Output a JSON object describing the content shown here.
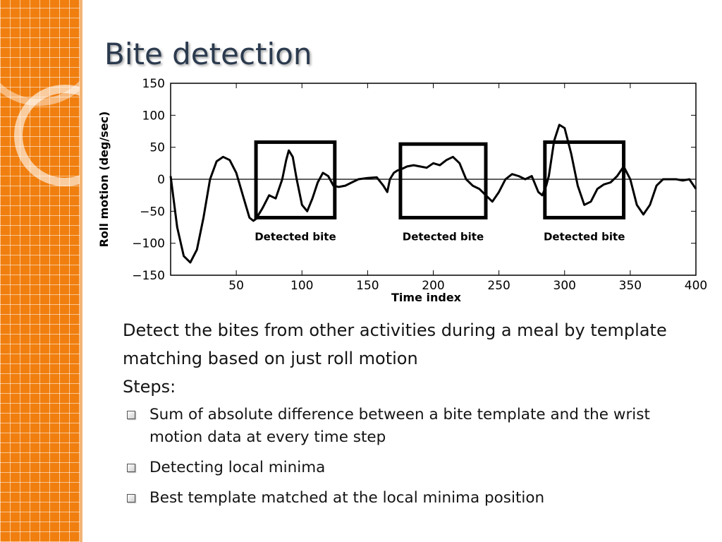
{
  "slide": {
    "title": "Bite detection",
    "accent_color": "#f07f0f",
    "title_color": "#2b3a4e"
  },
  "chart_data": {
    "type": "line",
    "xlabel": "Time index",
    "ylabel": "Roll motion (deg/sec)",
    "xlim": [
      0,
      400
    ],
    "ylim": [
      -150,
      150
    ],
    "xticks": [
      50,
      100,
      150,
      200,
      250,
      300,
      350,
      400
    ],
    "yticks": [
      150,
      100,
      50,
      0,
      -50,
      -100,
      -150
    ],
    "zero_line": true,
    "grid": false,
    "series": [
      {
        "x": [
          0,
          5,
          10,
          15,
          20,
          25,
          30,
          35,
          40,
          45,
          50,
          55,
          60,
          63,
          65,
          70,
          75,
          80,
          85,
          88,
          90,
          93,
          96,
          100,
          104,
          108,
          112,
          116,
          120,
          124,
          128,
          133,
          138,
          143,
          150,
          157,
          162,
          165,
          167,
          170,
          173,
          175,
          180,
          185,
          190,
          195,
          200,
          205,
          210,
          215,
          220,
          225,
          230,
          235,
          240,
          245,
          250,
          255,
          260,
          265,
          270,
          275,
          280,
          283,
          286,
          288,
          292,
          296,
          300,
          305,
          310,
          315,
          320,
          325,
          330,
          335,
          340,
          345,
          350,
          355,
          360,
          365,
          370,
          375,
          380,
          385,
          390,
          395,
          400
        ],
        "y": [
          5,
          -75,
          -120,
          -130,
          -110,
          -60,
          0,
          28,
          35,
          30,
          10,
          -25,
          -60,
          -65,
          -62,
          -45,
          -25,
          -30,
          0,
          30,
          45,
          35,
          0,
          -40,
          -50,
          -30,
          -5,
          10,
          5,
          -10,
          -12,
          -10,
          -5,
          0,
          2,
          3,
          -10,
          -20,
          0,
          10,
          14,
          15,
          20,
          22,
          20,
          18,
          25,
          22,
          30,
          35,
          25,
          0,
          -10,
          -15,
          -25,
          -35,
          -20,
          0,
          8,
          5,
          0,
          5,
          -20,
          -25,
          -10,
          5,
          60,
          85,
          80,
          40,
          -10,
          -40,
          -35,
          -15,
          -8,
          -5,
          5,
          20,
          0,
          -40,
          -55,
          -40,
          -10,
          0,
          0,
          0,
          -2,
          0,
          -15
        ]
      }
    ],
    "annotations": [
      {
        "label": "Detected bite",
        "x_range": [
          65,
          125
        ],
        "y_range": [
          -60,
          58
        ]
      },
      {
        "label": "Detected bite",
        "x_range": [
          175,
          240
        ],
        "y_range": [
          -60,
          55
        ]
      },
      {
        "label": "Detected bite",
        "x_range": [
          285,
          345
        ],
        "y_range": [
          -60,
          58
        ]
      }
    ]
  },
  "content": {
    "paragraph": "Detect the bites from other activities during a meal by template matching based on just roll motion",
    "steps_label": "Steps:",
    "bullets": [
      "Sum of absolute difference between a bite template and the wrist motion data at every time step",
      "Detecting local minima",
      "Best template matched at the local minima position"
    ]
  }
}
